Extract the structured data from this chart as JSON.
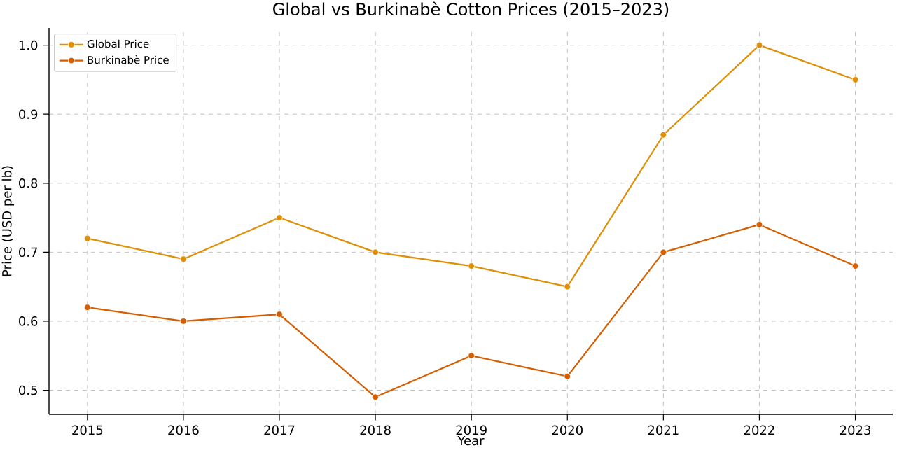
{
  "chart_data": {
    "type": "line",
    "title": "Global vs Burkinabè Cotton Prices (2015–2023)",
    "xlabel": "Year",
    "ylabel": "Price (USD per lb)",
    "x": [
      2015,
      2016,
      2017,
      2018,
      2019,
      2020,
      2021,
      2022,
      2023
    ],
    "series": [
      {
        "name": "Global Price",
        "color": "#de8f05",
        "values": [
          0.72,
          0.69,
          0.75,
          0.7,
          0.68,
          0.65,
          0.87,
          1.0,
          0.95
        ]
      },
      {
        "name": "Burkinabè Price",
        "color": "#d55e00",
        "values": [
          0.62,
          0.6,
          0.61,
          0.49,
          0.55,
          0.52,
          0.7,
          0.74,
          0.68
        ]
      }
    ],
    "xlim": [
      2014.6,
      2023.39
    ],
    "ylim": [
      0.465,
      1.025
    ],
    "xticks": [
      2015,
      2016,
      2017,
      2018,
      2019,
      2020,
      2021,
      2022,
      2023
    ],
    "yticks": [
      0.5,
      0.6,
      0.7,
      0.8,
      0.9,
      {
        "value": 1.0,
        "label": "1.0"
      }
    ],
    "grid": true,
    "legend": "top left",
    "marker": "circle",
    "line_style": "solid"
  }
}
